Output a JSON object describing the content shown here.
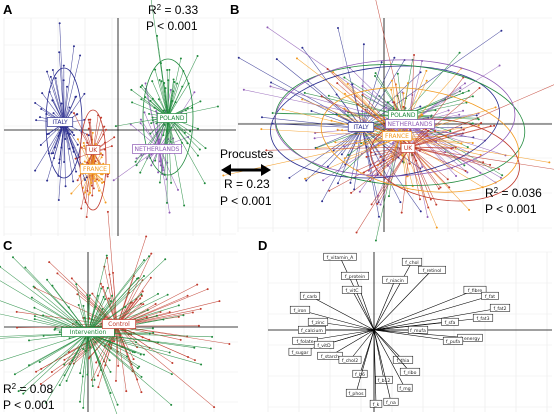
{
  "figure": {
    "panels": [
      {
        "letter": "A"
      },
      {
        "letter": "B"
      },
      {
        "letter": "C"
      },
      {
        "letter": "D"
      }
    ],
    "stats": {
      "a": {
        "r2_prefix": "R",
        "r2_value": " = 0.33",
        "p": "P < 0.001"
      },
      "b": {
        "r2_prefix": "R",
        "r2_value": " = 0.036",
        "p": "P < 0.001"
      },
      "c": {
        "r2_prefix": "R",
        "r2_value": " = 0.08",
        "p": "P < 0.001"
      },
      "procrustes": {
        "title": "Procustes",
        "r": "R = 0.23",
        "p": "P < 0.001"
      }
    }
  },
  "groups": {
    "countries": [
      {
        "name": "ITALY",
        "color": "#2b2e8f"
      },
      {
        "name": "UK",
        "color": "#c0392b"
      },
      {
        "name": "FRANCE",
        "color": "#f39a1e"
      },
      {
        "name": "NETHERLANDS",
        "color": "#8e5ab5"
      },
      {
        "name": "POLAND",
        "color": "#1f8a3c"
      }
    ],
    "treatments": [
      {
        "name": "Intervention",
        "color": "#1f8a3c"
      },
      {
        "name": "Control",
        "color": "#c0392b"
      }
    ]
  },
  "biplot": {
    "variables": [
      "f_vitamin_A",
      "f_chol",
      "f_retinol",
      "f_protein",
      "f_niacin",
      "f_vitC",
      "f_carb",
      "f_fibre",
      "f_fat",
      "f_fat2",
      "f_fat3",
      "f_energy",
      "f_pufa",
      "f_mufa",
      "f_sfa",
      "f_iron",
      "f_zinc",
      "f_calcium",
      "f_folate",
      "f_sugar",
      "f_starch",
      "f_chol2",
      "f_vitD",
      "f_thia",
      "f_ribo",
      "f_b6",
      "f_b12",
      "f_phos",
      "f_mg",
      "f_na",
      "f_k"
    ]
  }
}
